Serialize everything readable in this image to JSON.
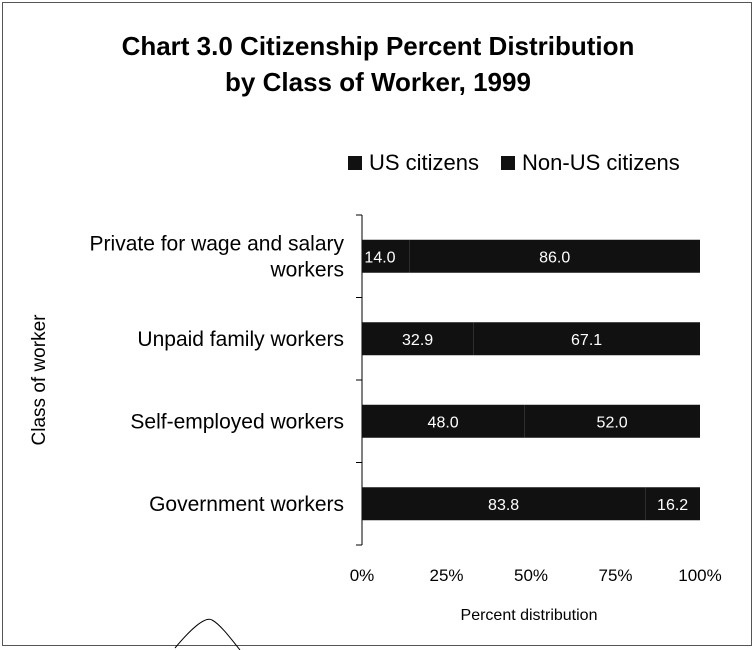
{
  "chart_data": {
    "type": "bar",
    "orientation": "horizontal",
    "stacked": true,
    "percent": true,
    "title_lines": [
      "Chart 3.0 Citizenship Percent Distribution",
      "by Class of Worker, 1999"
    ],
    "xlabel": "Percent distribution",
    "ylabel": "Class of worker",
    "xlim": [
      0,
      100
    ],
    "x_ticks": [
      "0%",
      "25%",
      "50%",
      "75%",
      "100%"
    ],
    "categories": [
      [
        "Private for wage and salary",
        "workers"
      ],
      [
        "Unpaid family workers"
      ],
      [
        "Self-employed workers"
      ],
      [
        "Government workers"
      ]
    ],
    "series": [
      {
        "name": "US citizens",
        "values": [
          14.0,
          32.9,
          48.0,
          83.8
        ],
        "labels": [
          "14.0",
          "32.9",
          "48.0",
          "83.8"
        ],
        "color": "#111111"
      },
      {
        "name": "Non-US citizens",
        "values": [
          86.0,
          67.1,
          52.0,
          16.2
        ],
        "labels": [
          "86.0",
          "67.1",
          "52.0",
          "16.2"
        ],
        "color": "#111111"
      }
    ],
    "legend_position": "top-right",
    "grid": false
  }
}
